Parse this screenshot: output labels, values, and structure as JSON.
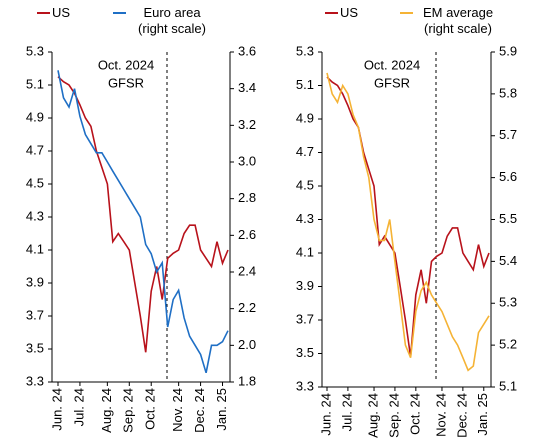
{
  "chart_data": [
    {
      "type": "line",
      "categories": [
        "Jun. 24",
        null,
        null,
        null,
        "Jul. 24",
        null,
        null,
        null,
        null,
        "Aug. 24",
        null,
        null,
        null,
        "Sep. 24",
        null,
        null,
        null,
        "Oct. 24",
        null,
        null,
        null,
        null,
        "Nov. 24",
        null,
        null,
        null,
        "Dec. 24",
        null,
        null,
        null,
        "Jan. 25",
        null
      ],
      "annotation": [
        "Oct. 2024",
        "GFSR"
      ],
      "ylim": [
        3.3,
        5.3
      ],
      "yticks": [
        3.3,
        3.5,
        3.7,
        3.9,
        4.1,
        4.3,
        4.5,
        4.7,
        4.9,
        5.1,
        5.3
      ],
      "y2lim": [
        1.8,
        3.6
      ],
      "y2ticks": [
        1.8,
        {
          "value": 2,
          "label": "2.0"
        },
        2.2,
        2.4,
        2.6,
        2.8,
        {
          "value": 3,
          "label": "3.0"
        },
        3.2,
        3.4,
        3.6
      ],
      "series": [
        {
          "name": "US",
          "color": "#b8121b",
          "values": [
            5.15,
            5.12,
            5.1,
            5.05,
            4.98,
            4.9,
            4.85,
            4.7,
            4.6,
            4.5,
            4.15,
            4.2,
            4.15,
            4.1,
            3.9,
            3.7,
            3.48,
            3.85,
            4.0,
            3.8,
            4.05,
            4.08,
            4.1,
            4.2,
            4.25,
            4.25,
            4.1,
            4.05,
            4.0,
            4.15,
            4.02,
            4.1
          ]
        },
        {
          "name": "Euro area (right scale)",
          "color": "#1f6fc5",
          "axis": "y2",
          "values": [
            3.5,
            3.35,
            3.3,
            3.4,
            3.25,
            3.15,
            3.1,
            3.05,
            3.05,
            3.0,
            2.95,
            2.9,
            2.85,
            2.8,
            2.75,
            2.7,
            2.55,
            2.5,
            2.4,
            2.45,
            2.1,
            2.25,
            2.3,
            2.15,
            2.05,
            2.0,
            1.95,
            1.85,
            2.0,
            2.0,
            2.02,
            2.08
          ]
        }
      ]
    },
    {
      "type": "line",
      "categories": [
        "Jun. 24",
        null,
        null,
        null,
        "Jul. 24",
        null,
        null,
        null,
        null,
        "Aug. 24",
        null,
        null,
        null,
        "Sep. 24",
        null,
        null,
        null,
        "Oct. 24",
        null,
        null,
        null,
        null,
        "Nov. 24",
        null,
        null,
        null,
        "Dec. 24",
        null,
        null,
        null,
        "Jan. 25",
        null
      ],
      "annotation": [
        "Oct. 2024",
        "GFSR"
      ],
      "ylim": [
        3.3,
        5.3
      ],
      "yticks": [
        3.3,
        3.5,
        3.7,
        3.9,
        4.1,
        4.3,
        4.5,
        4.7,
        4.9,
        5.1,
        5.3
      ],
      "y2lim": [
        5.1,
        5.9
      ],
      "y2ticks": [
        5.1,
        5.2,
        5.3,
        5.4,
        5.5,
        5.6,
        5.7,
        5.8,
        5.9
      ],
      "series": [
        {
          "name": "US",
          "color": "#b8121b",
          "values": [
            5.15,
            5.12,
            5.1,
            5.05,
            4.98,
            4.9,
            4.85,
            4.7,
            4.6,
            4.5,
            4.15,
            4.2,
            4.15,
            4.1,
            3.9,
            3.7,
            3.48,
            3.85,
            4.0,
            3.8,
            4.05,
            4.08,
            4.1,
            4.2,
            4.25,
            4.25,
            4.1,
            4.05,
            4.0,
            4.15,
            4.02,
            4.1
          ]
        },
        {
          "name": "EM average (right scale)",
          "color": "#f5b335",
          "axis": "y2",
          "values": [
            5.85,
            5.8,
            5.78,
            5.82,
            5.8,
            5.75,
            5.72,
            5.65,
            5.6,
            5.5,
            5.45,
            5.45,
            5.5,
            5.4,
            5.3,
            5.2,
            5.17,
            5.28,
            5.33,
            5.35,
            5.32,
            5.3,
            5.28,
            5.25,
            5.22,
            5.2,
            5.17,
            5.14,
            5.15,
            5.23,
            5.25,
            5.27
          ]
        }
      ]
    }
  ]
}
